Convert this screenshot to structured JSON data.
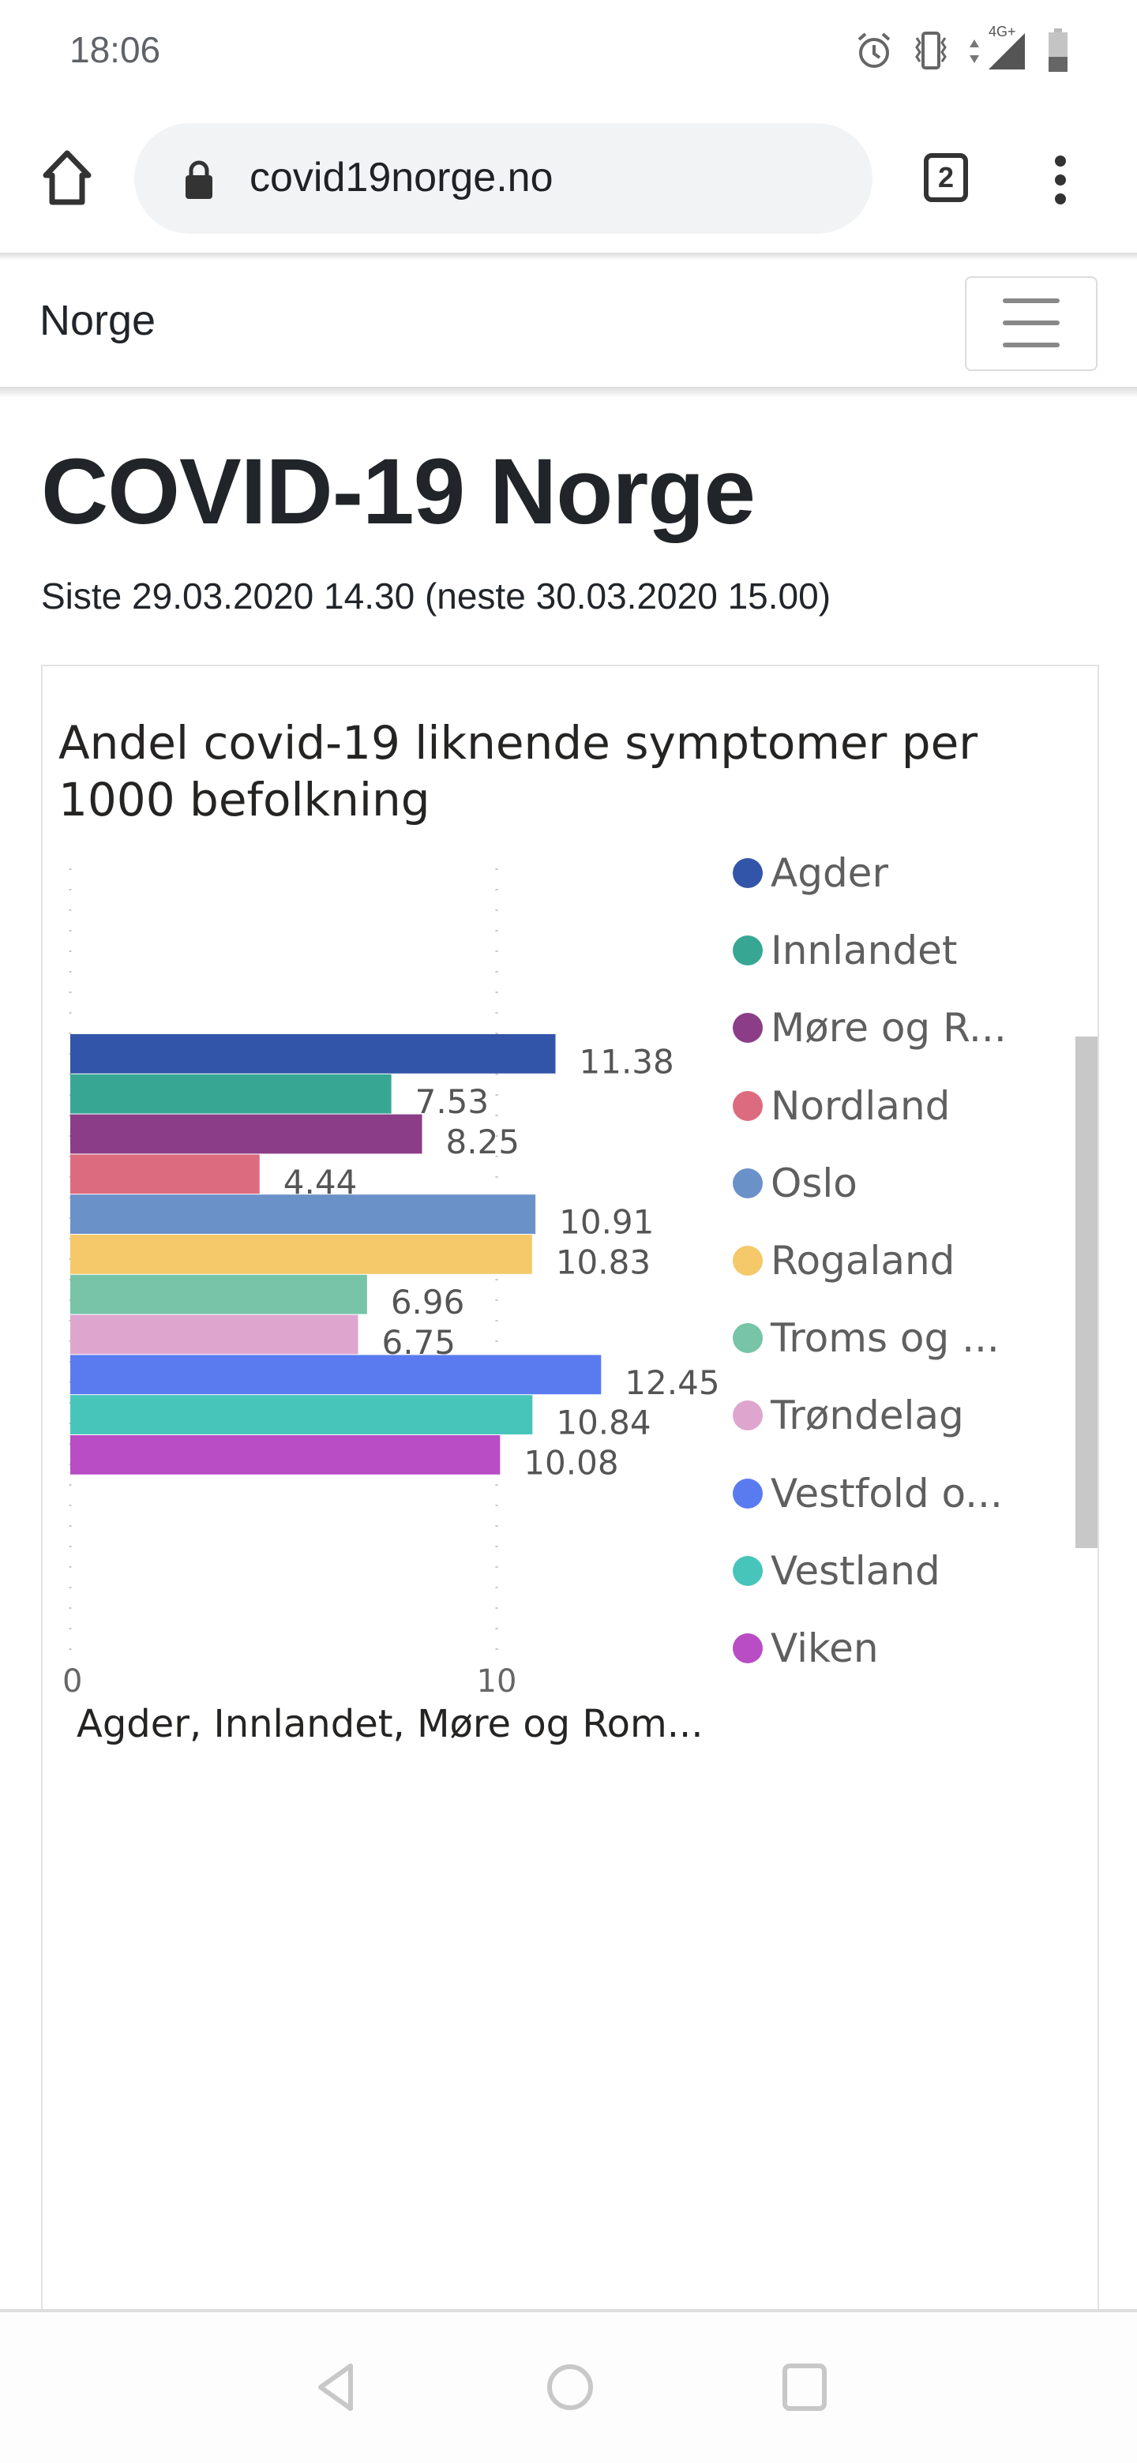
{
  "status_bar": {
    "time": "18:06",
    "network_label": "4G+",
    "icons": [
      "alarm-icon",
      "vibrate-icon",
      "data-arrows-icon",
      "signal-icon",
      "battery-icon"
    ]
  },
  "browser": {
    "url": "covid19norge.no",
    "tab_count": "2",
    "icons": [
      "home-icon",
      "lock-icon",
      "tabs-icon",
      "more-vert-icon"
    ]
  },
  "navbar": {
    "brand": "Norge",
    "toggle_icon": "hamburger-icon"
  },
  "page": {
    "title": "COVID-19 Norge",
    "subtitle": "Siste 29.03.2020 14.30 (neste 30.03.2020 15.00)"
  },
  "chart_data": {
    "type": "bar",
    "orientation": "horizontal",
    "title": "Andel covid-19 liknende symptomer per 1000 befolkning",
    "xlabel": "Agder, Innlandet, Møre og Rom...",
    "ylabel": "",
    "xlim": [
      0,
      15
    ],
    "x_ticks": [
      0,
      10
    ],
    "grid": true,
    "legend_position": "right",
    "series": [
      {
        "name": "Agder",
        "legend_label": "Agder",
        "value": 11.38,
        "label": "11.38",
        "color": "#3355a9"
      },
      {
        "name": "Innlandet",
        "legend_label": "Innlandet",
        "value": 7.53,
        "label": "7.53",
        "color": "#37a794"
      },
      {
        "name": "Møre og Romsdal",
        "legend_label": "Møre og R...",
        "value": 8.25,
        "label": "8.25",
        "color": "#8b3d88"
      },
      {
        "name": "Nordland",
        "legend_label": "Nordland",
        "value": 4.44,
        "label": "4.44",
        "color": "#dd6b7f"
      },
      {
        "name": "Oslo",
        "legend_label": "Oslo",
        "value": 10.91,
        "label": "10.91",
        "color": "#6b91c9"
      },
      {
        "name": "Rogaland",
        "legend_label": "Rogaland",
        "value": 10.83,
        "label": "10.83",
        "color": "#f5c869"
      },
      {
        "name": "Troms og Finnmark",
        "legend_label": "Troms og ...",
        "value": 6.96,
        "label": "6.96",
        "color": "#77c4a8"
      },
      {
        "name": "Trøndelag",
        "legend_label": "Trøndelag",
        "value": 6.75,
        "label": "6.75",
        "color": "#dea6cf"
      },
      {
        "name": "Vestfold og Telemark",
        "legend_label": "Vestfold o...",
        "value": 12.45,
        "label": "12.45",
        "color": "#5a7bf0"
      },
      {
        "name": "Vestland",
        "legend_label": "Vestland",
        "value": 10.84,
        "label": "10.84",
        "color": "#48c5bb"
      },
      {
        "name": "Viken",
        "legend_label": "Viken",
        "value": 10.08,
        "label": "10.08",
        "color": "#b84dc5"
      }
    ]
  },
  "system_nav": {
    "icons": [
      "back-icon",
      "home-circle-icon",
      "recents-icon"
    ]
  }
}
